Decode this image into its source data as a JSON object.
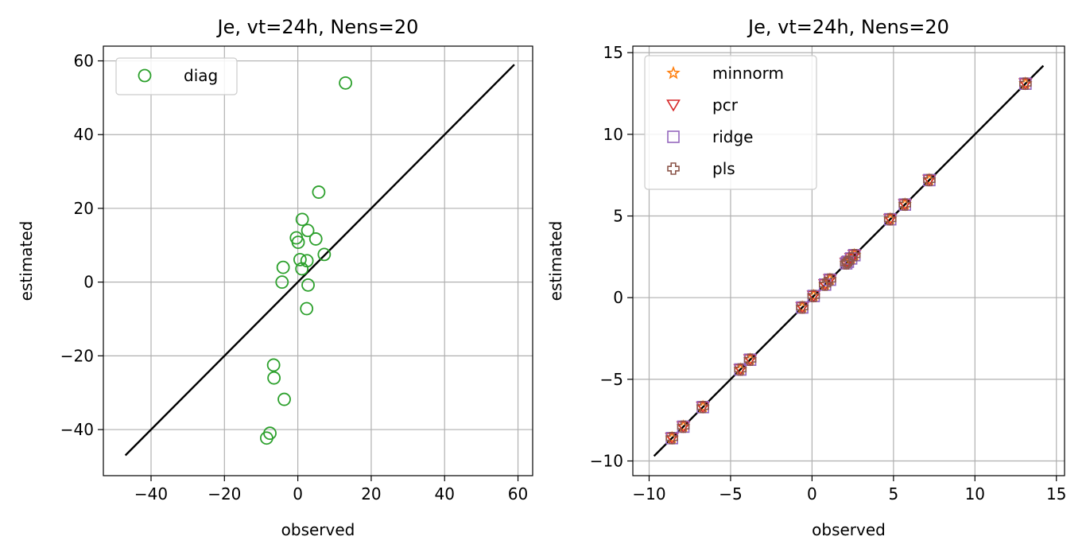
{
  "chart_data": [
    {
      "type": "scatter",
      "title": "Je, vt=24h, Nens=20",
      "xlabel": "observed",
      "ylabel": "estimated",
      "xlim": [
        -53,
        64
      ],
      "ylim": [
        -52.5,
        64
      ],
      "xticks": [
        -40,
        -20,
        0,
        20,
        40,
        60
      ],
      "yticks": [
        -40,
        -20,
        0,
        20,
        40,
        60
      ],
      "xtick_labels": [
        "−40",
        "−20",
        "0",
        "20",
        "40",
        "60"
      ],
      "ytick_labels": [
        "−40",
        "−20",
        "0",
        "20",
        "40",
        "60"
      ],
      "grid": true,
      "legend_position": "top-left",
      "reference_line": {
        "x": [
          -47,
          59
        ],
        "y": [
          -47,
          59
        ],
        "color": "#000000"
      },
      "series": [
        {
          "name": "diag",
          "marker": "circle",
          "color": "#2ca02c",
          "points": [
            [
              13,
              54
            ],
            [
              5.7,
              24.4
            ],
            [
              1.2,
              17
            ],
            [
              2.7,
              14
            ],
            [
              -0.4,
              12
            ],
            [
              0.1,
              10.8
            ],
            [
              4.9,
              11.7
            ],
            [
              7.2,
              7.5
            ],
            [
              0.6,
              6.1
            ],
            [
              2.5,
              5.8
            ],
            [
              1.1,
              3.6
            ],
            [
              -4,
              4
            ],
            [
              -4.3,
              0
            ],
            [
              2.8,
              -0.8
            ],
            [
              2.4,
              -7.2
            ],
            [
              -6.6,
              -22.5
            ],
            [
              -6.5,
              -26
            ],
            [
              -3.7,
              -31.8
            ],
            [
              -7.6,
              -41
            ],
            [
              -8.5,
              -42.3
            ]
          ]
        }
      ]
    },
    {
      "type": "scatter",
      "title": "Je, vt=24h, Nens=20",
      "xlabel": "observed",
      "ylabel": "estimated",
      "xlim": [
        -11,
        15.5
      ],
      "ylim": [
        -10.9,
        15.4
      ],
      "xticks": [
        -10,
        -5,
        0,
        5,
        10,
        15
      ],
      "yticks": [
        -10,
        -5,
        0,
        5,
        10,
        15
      ],
      "xtick_labels": [
        "−10",
        "−5",
        "0",
        "5",
        "10",
        "15"
      ],
      "ytick_labels": [
        "−10",
        "−5",
        "0",
        "5",
        "10",
        "15"
      ],
      "grid": true,
      "legend_position": "top-left",
      "reference_line": {
        "x": [
          -9.7,
          14.2
        ],
        "y": [
          -9.7,
          14.2
        ],
        "color": "#000000"
      },
      "shared_x": [
        -8.6,
        -7.9,
        -6.7,
        -4.4,
        -3.8,
        -0.6,
        0.1,
        0.8,
        1.1,
        2.1,
        2.2,
        2.4,
        2.6,
        4.8,
        5.7,
        7.2,
        13.1
      ],
      "series": [
        {
          "name": "minnorm",
          "marker": "star",
          "color": "#ff7f0e",
          "y": [
            -8.6,
            -7.9,
            -6.7,
            -4.4,
            -3.8,
            -0.6,
            0.1,
            0.8,
            1.1,
            2.1,
            2.2,
            2.4,
            2.6,
            4.8,
            5.7,
            7.2,
            13.1
          ]
        },
        {
          "name": "pcr",
          "marker": "triangle-down",
          "color": "#d62728",
          "y": [
            -8.6,
            -7.9,
            -6.7,
            -4.4,
            -3.8,
            -0.6,
            0.1,
            0.8,
            1.1,
            2.1,
            2.2,
            2.4,
            2.6,
            4.8,
            5.7,
            7.2,
            13.1
          ]
        },
        {
          "name": "ridge",
          "marker": "square",
          "color": "#9467bd",
          "y": [
            -8.6,
            -7.9,
            -6.7,
            -4.4,
            -3.8,
            -0.6,
            0.1,
            0.8,
            1.1,
            2.1,
            2.2,
            2.4,
            2.6,
            4.8,
            5.7,
            7.2,
            13.1
          ]
        },
        {
          "name": "pls",
          "marker": "plus",
          "color": "#8c564b",
          "y": [
            -8.6,
            -7.9,
            -6.7,
            -4.4,
            -3.8,
            -0.6,
            0.1,
            0.8,
            1.1,
            2.1,
            2.2,
            2.4,
            2.6,
            4.8,
            5.7,
            7.2,
            13.1
          ]
        }
      ]
    }
  ]
}
